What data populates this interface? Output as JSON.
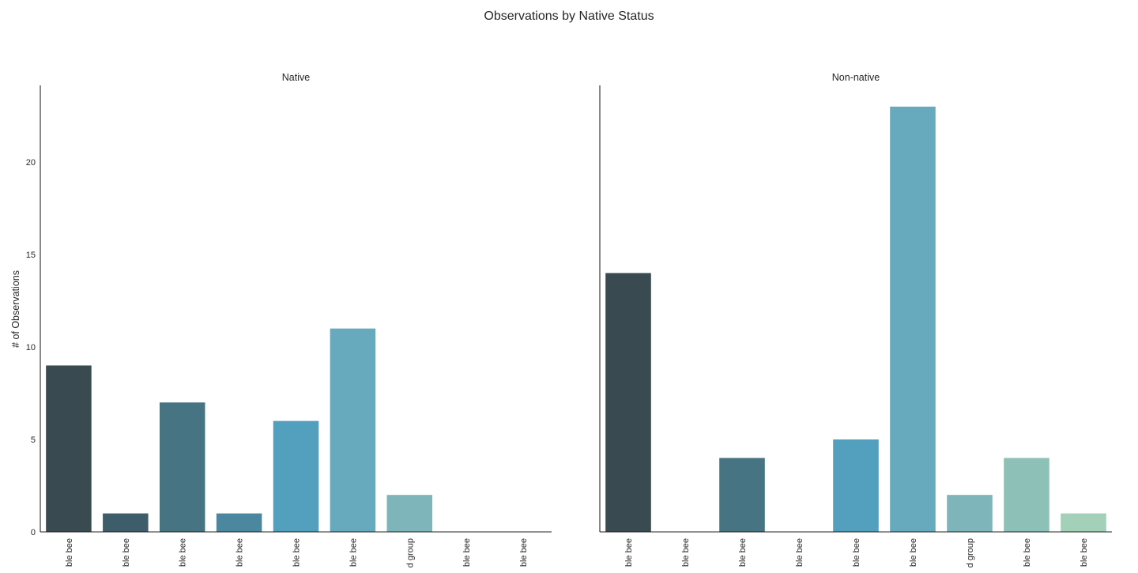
{
  "chart_data": {
    "type": "bar",
    "title": "Observations by Native Status",
    "ylabel": "# of Observations",
    "xlabel": "",
    "ylim": [
      0,
      24.15
    ],
    "yticks": [
      0,
      5,
      10,
      15,
      20
    ],
    "grid": false,
    "shared_y": true,
    "categories": [
      "ble bee",
      "ble bee",
      "ble bee",
      "ble bee",
      "ble bee",
      "ble bee",
      "d group",
      "ble bee",
      "ble bee"
    ],
    "colors": [
      "#3a4a51",
      "#3e5d6a",
      "#467483",
      "#4b88a0",
      "#539fbe",
      "#67a9bd",
      "#7db5ba",
      "#8dc1b7",
      "#a2d0b8"
    ],
    "panels": [
      {
        "title": "Native",
        "values": [
          9,
          1,
          7,
          1,
          6,
          11,
          2,
          0,
          0
        ]
      },
      {
        "title": "Non-native",
        "values": [
          14,
          0,
          4,
          0,
          5,
          23,
          2,
          4,
          1
        ]
      }
    ]
  }
}
